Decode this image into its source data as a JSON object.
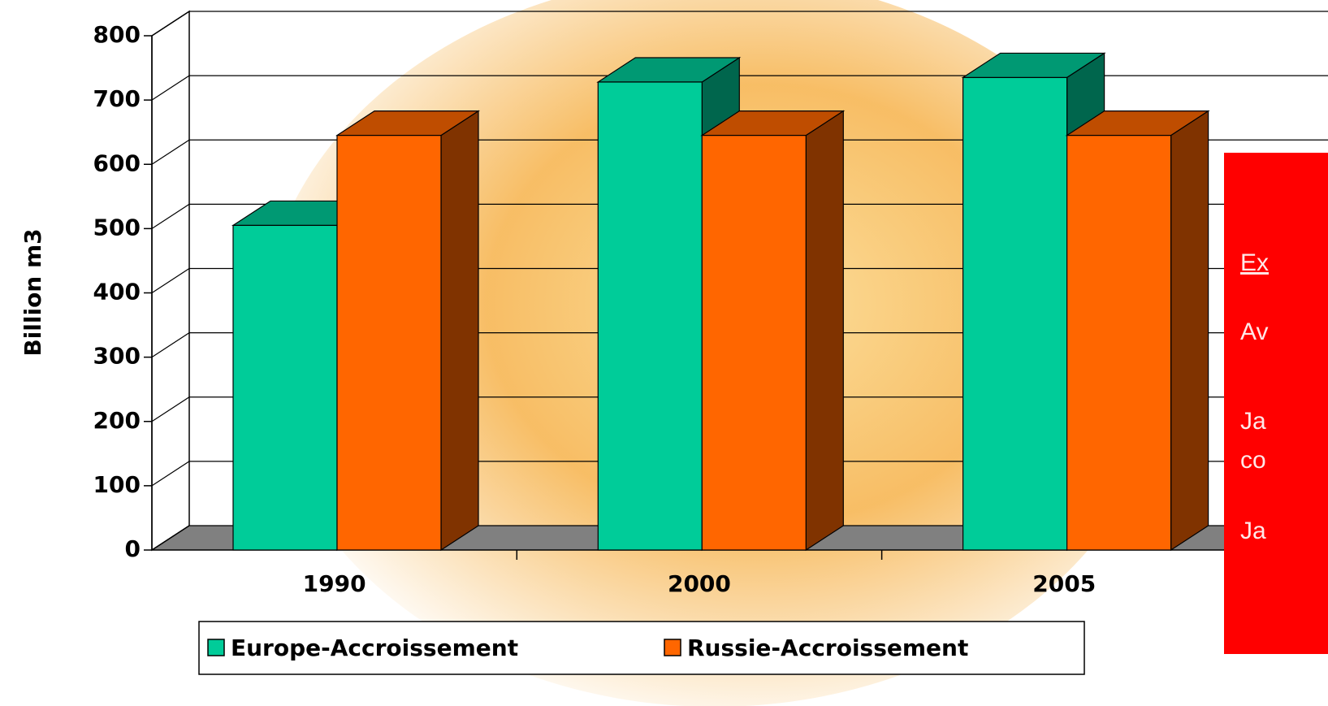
{
  "chart_data": {
    "type": "bar3d",
    "y_axis_label": "Billion m3",
    "categories": [
      "1990",
      "2000",
      "2005"
    ],
    "series": [
      {
        "name": "Europe-Accroissement",
        "color": "#00cc99",
        "values": [
          505,
          728,
          735
        ]
      },
      {
        "name": "Russie-Accroissement",
        "color": "#ff6600",
        "values": [
          645,
          645,
          645
        ]
      }
    ],
    "ylim": [
      0,
      800
    ],
    "yticks": [
      0,
      100,
      200,
      300,
      400,
      500,
      600,
      700,
      800
    ],
    "grid": true,
    "legend": "bottom",
    "annotation": [
      "Ex",
      "Av",
      "Ja",
      "co",
      "Ja"
    ]
  }
}
